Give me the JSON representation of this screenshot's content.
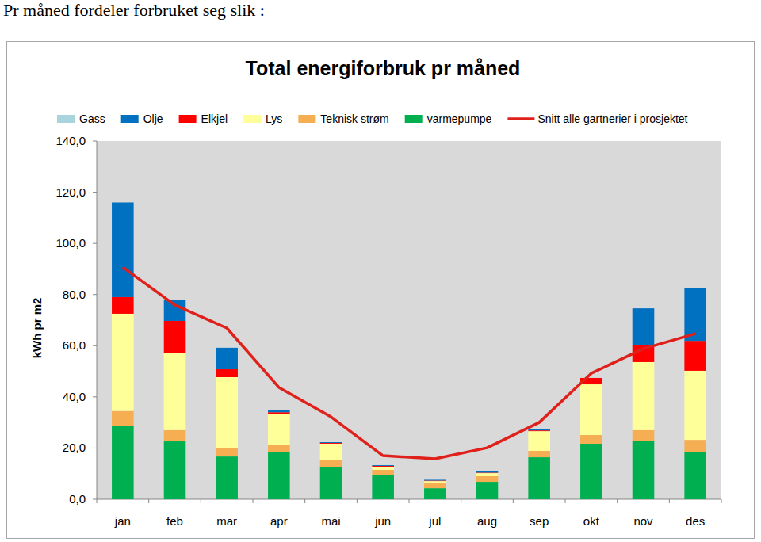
{
  "heading": "Pr måned fordeler forbruket seg slik :",
  "chart_data": {
    "type": "bar",
    "stacked": true,
    "title": "Total energiforbruk pr måned",
    "y_label": "kWh pr m2",
    "legend": "top",
    "grid": false,
    "categories": [
      "jan",
      "feb",
      "mar",
      "apr",
      "mai",
      "jun",
      "jul",
      "aug",
      "sep",
      "okt",
      "nov",
      "des"
    ],
    "ylim": [
      0,
      140
    ],
    "yticks": [
      {
        "value": 0,
        "label": "0,0"
      },
      {
        "value": 20,
        "label": "20,0"
      },
      {
        "value": 40,
        "label": "40,0"
      },
      {
        "value": 60,
        "label": "60,0"
      },
      {
        "value": 80,
        "label": "80,0"
      },
      {
        "value": 100,
        "label": "100,0"
      },
      {
        "value": 120,
        "label": "120,0"
      },
      {
        "value": 140,
        "label": "140,0"
      }
    ],
    "series": [
      {
        "name": "Gass",
        "color": "#a9d4de",
        "values": [
          0,
          0,
          0,
          0,
          0,
          0,
          0,
          0,
          0,
          0,
          0,
          0
        ]
      },
      {
        "name": "Olje",
        "color": "#0070c0",
        "values": [
          37,
          8.3,
          8.4,
          0.7,
          0.3,
          0.3,
          0.3,
          0.5,
          0.6,
          0,
          14.5,
          20.5
        ]
      },
      {
        "name": "Elkjel",
        "color": "#ff0000",
        "values": [
          6.5,
          12.7,
          3.1,
          0.6,
          0.3,
          0.3,
          0.2,
          0.2,
          0.3,
          2.5,
          6.5,
          11.7
        ]
      },
      {
        "name": "Lys",
        "color": "#ffff99",
        "values": [
          38,
          30,
          27.6,
          12.3,
          6.2,
          1.2,
          0.9,
          1.2,
          7.7,
          19.8,
          26.6,
          27
        ]
      },
      {
        "name": "Teknisk strøm",
        "color": "#f6ae52",
        "values": [
          6,
          4.4,
          3.4,
          2.8,
          2.8,
          2.2,
          1.9,
          2.2,
          2.5,
          3.4,
          4.1,
          4.9
        ]
      },
      {
        "name": "varmepumpe",
        "color": "#00b050",
        "values": [
          28.5,
          22.6,
          16.7,
          18.3,
          12.7,
          9.3,
          4.3,
          6.8,
          16.4,
          21.7,
          22.9,
          18.3
        ]
      },
      {
        "name": "Snitt alle gartnerier i prosjektet",
        "type": "line",
        "color": "#e0201b",
        "values": [
          90.7,
          75.9,
          66.9,
          43.7,
          32.2,
          17,
          15.8,
          20.1,
          30,
          49.2,
          58.8,
          64.7
        ]
      }
    ]
  }
}
